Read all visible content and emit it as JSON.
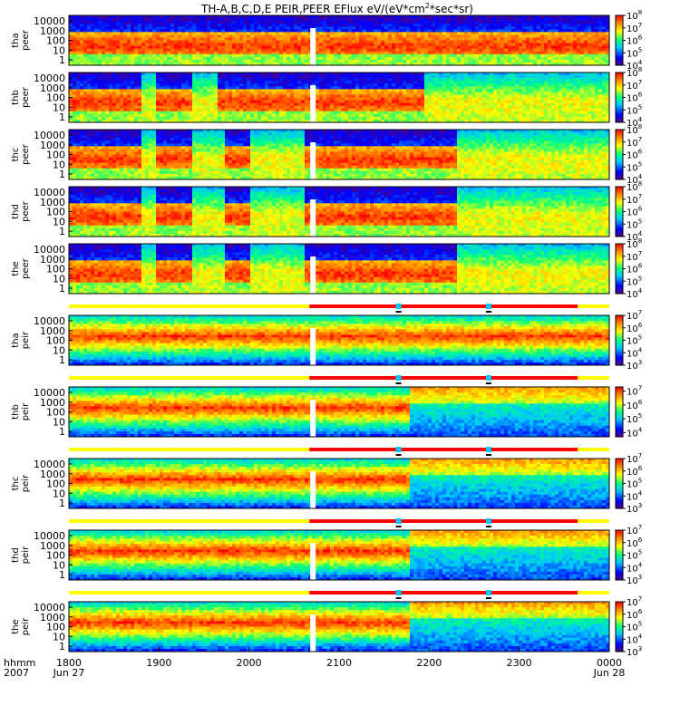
{
  "chart_data": {
    "type": "heatmap",
    "title": "TH-A,B,C,D,E PEIR,PEER EFlux eV/(eV*cm",
    "title_sup": "2",
    "title_suffix": "*sec*sr)",
    "x_axis": {
      "range": [
        1800,
        2400
      ],
      "ticks": [
        "1800",
        "1900",
        "2000",
        "2100",
        "2200",
        "2300",
        "0000"
      ],
      "start_date": "Jun 27",
      "end_date": "Jun 28",
      "corner_labels": [
        "hhmm",
        "2007"
      ]
    },
    "panels": [
      {
        "probe": "tha",
        "species": "peer",
        "y_ticks": [
          "10000",
          "1000",
          "100",
          "10",
          "1"
        ],
        "colorbar_ticks": [
          "10",
          "10",
          "10",
          "10",
          "10"
        ],
        "colorbar_exps": [
          "8",
          "7",
          "6",
          "5",
          "4"
        ],
        "colorbar_range_exp": [
          4,
          8
        ]
      },
      {
        "probe": "thb",
        "species": "peer",
        "y_ticks": [
          "10000",
          "1000",
          "100",
          "10",
          "1"
        ],
        "colorbar_ticks": [
          "10",
          "10",
          "10",
          "10",
          "10"
        ],
        "colorbar_exps": [
          "8",
          "7",
          "6",
          "5",
          "4"
        ],
        "colorbar_range_exp": [
          4,
          8
        ]
      },
      {
        "probe": "thc",
        "species": "peer",
        "y_ticks": [
          "10000",
          "1000",
          "100",
          "10",
          "1"
        ],
        "colorbar_ticks": [
          "10",
          "10",
          "10",
          "10",
          "10"
        ],
        "colorbar_exps": [
          "8",
          "7",
          "6",
          "5",
          "4"
        ],
        "colorbar_range_exp": [
          4,
          8
        ]
      },
      {
        "probe": "thd",
        "species": "peer",
        "y_ticks": [
          "10000",
          "1000",
          "100",
          "10",
          "1"
        ],
        "colorbar_ticks": [
          "10",
          "10",
          "10",
          "10",
          "10"
        ],
        "colorbar_exps": [
          "8",
          "7",
          "6",
          "5",
          "4"
        ],
        "colorbar_range_exp": [
          4,
          8
        ]
      },
      {
        "probe": "the",
        "species": "peer",
        "y_ticks": [
          "10000",
          "1000",
          "100",
          "10",
          "1"
        ],
        "colorbar_ticks": [
          "10",
          "10",
          "10",
          "10",
          "10"
        ],
        "colorbar_exps": [
          "8",
          "7",
          "6",
          "5",
          "4"
        ],
        "colorbar_range_exp": [
          4,
          8
        ]
      },
      {
        "probe": "tha",
        "species": "peir",
        "y_ticks": [
          "10000",
          "1000",
          "100",
          "10",
          "1"
        ],
        "colorbar_ticks": [
          "10",
          "10",
          "10",
          "10",
          "10"
        ],
        "colorbar_exps": [
          "7",
          "6",
          "5",
          "4",
          "3"
        ],
        "colorbar_range_exp": [
          3,
          7
        ]
      },
      {
        "probe": "thb",
        "species": "peir",
        "y_ticks": [
          "10000",
          "1000",
          "100",
          "10",
          "1"
        ],
        "colorbar_ticks": [
          "10",
          "10",
          "10",
          "10"
        ],
        "colorbar_exps": [
          "7",
          "6",
          "5",
          "4"
        ],
        "colorbar_range_exp": [
          3.7,
          7.3
        ]
      },
      {
        "probe": "thc",
        "species": "peir",
        "y_ticks": [
          "10000",
          "1000",
          "100",
          "10",
          "1"
        ],
        "colorbar_ticks": [
          "10",
          "10",
          "10",
          "10",
          "10"
        ],
        "colorbar_exps": [
          "7",
          "6",
          "5",
          "4",
          "3"
        ],
        "colorbar_range_exp": [
          3,
          7
        ]
      },
      {
        "probe": "thd",
        "species": "peir",
        "y_ticks": [
          "10000",
          "1000",
          "100",
          "10",
          "1"
        ],
        "colorbar_ticks": [
          "10",
          "10",
          "10",
          "10",
          "10"
        ],
        "colorbar_exps": [
          "7",
          "6",
          "5",
          "4",
          "3"
        ],
        "colorbar_range_exp": [
          3,
          7
        ]
      },
      {
        "probe": "the",
        "species": "peir",
        "y_ticks": [
          "10000",
          "1000",
          "100",
          "10",
          "1"
        ],
        "colorbar_ticks": [
          "10",
          "10",
          "10",
          "10",
          "10"
        ],
        "colorbar_exps": [
          "7",
          "6",
          "5",
          "4",
          "3"
        ],
        "colorbar_range_exp": [
          3,
          7
        ]
      }
    ],
    "mode_bars": [
      {
        "segments": [
          {
            "from": 1800,
            "to": 2067,
            "mode": "slow"
          },
          {
            "from": 2067,
            "to": 2365,
            "mode": "fast"
          },
          {
            "from": 2365,
            "to": 2400,
            "mode": "slow"
          }
        ],
        "markers": [
          2166,
          2266
        ]
      },
      {
        "segments": [
          {
            "from": 1800,
            "to": 2067,
            "mode": "slow"
          },
          {
            "from": 2067,
            "to": 2365,
            "mode": "fast"
          },
          {
            "from": 2365,
            "to": 2400,
            "mode": "slow"
          }
        ],
        "markers": [
          2166,
          2266
        ]
      },
      {
        "segments": [
          {
            "from": 1800,
            "to": 2067,
            "mode": "slow"
          },
          {
            "from": 2067,
            "to": 2365,
            "mode": "fast"
          },
          {
            "from": 2365,
            "to": 2400,
            "mode": "slow"
          }
        ],
        "markers": [
          2166,
          2266
        ]
      },
      {
        "segments": [
          {
            "from": 1800,
            "to": 2067,
            "mode": "slow"
          },
          {
            "from": 2067,
            "to": 2365,
            "mode": "fast"
          },
          {
            "from": 2365,
            "to": 2400,
            "mode": "slow"
          }
        ],
        "markers": [
          2166,
          2266
        ]
      },
      {
        "segments": [
          {
            "from": 1800,
            "to": 2067,
            "mode": "slow"
          },
          {
            "from": 2067,
            "to": 2365,
            "mode": "fast"
          },
          {
            "from": 2365,
            "to": 2400,
            "mode": "slow"
          }
        ],
        "markers": [
          2166,
          2266
        ]
      }
    ],
    "colors": {
      "slow_mode": "#ffff00",
      "fast_mode": "#ff0000",
      "marker": "#00c8ff",
      "scale": [
        "#50007f",
        "#0000ff",
        "#00c8ff",
        "#00ff80",
        "#ffff00",
        "#ff8000",
        "#ff0000"
      ]
    }
  }
}
